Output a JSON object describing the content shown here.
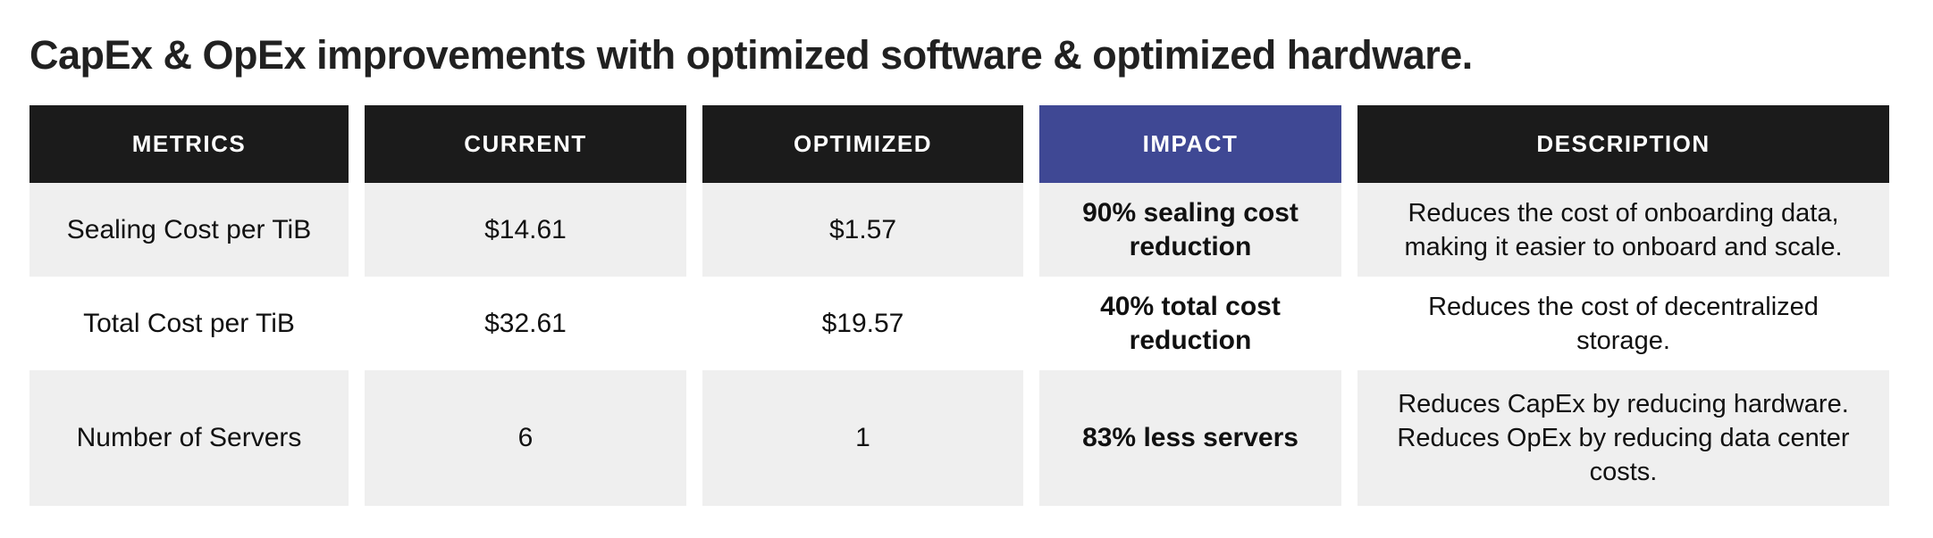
{
  "title": "CapEx & OpEx improvements with optimized software & optimized hardware.",
  "colors": {
    "page_background": "#ffffff",
    "title_text": "#212121",
    "header_background": "#1b1b1b",
    "header_text": "#ffffff",
    "impact_header_background": "#3f4894",
    "row_alt_background": "#efefef",
    "row_background": "#ffffff",
    "body_text": "#111111"
  },
  "table": {
    "columns": [
      "METRICS",
      "CURRENT",
      "OPTIMIZED",
      "IMPACT",
      "DESCRIPTION"
    ],
    "rows": [
      {
        "metric": "Sealing Cost per TiB",
        "current": "$14.61",
        "optimized": "$1.57",
        "impact": "90% sealing cost\nreduction",
        "description": "Reduces the cost of onboarding data,\nmaking it easier to onboard and scale."
      },
      {
        "metric": "Total Cost per TiB",
        "current": "$32.61",
        "optimized": "$19.57",
        "impact": "40% total cost\nreduction",
        "description": "Reduces the cost of decentralized\nstorage."
      },
      {
        "metric": "Number of Servers",
        "current": "6",
        "optimized": "1",
        "impact": "83% less servers",
        "description": "Reduces CapEx by reducing hardware.\nReduces OpEx by reducing data center\ncosts."
      }
    ]
  },
  "chart_data": {
    "type": "table",
    "title": "CapEx & OpEx improvements with optimized software & optimized hardware.",
    "columns": [
      "METRICS",
      "CURRENT",
      "OPTIMIZED",
      "IMPACT",
      "DESCRIPTION"
    ],
    "rows": [
      [
        "Sealing Cost per TiB",
        "$14.61",
        "$1.57",
        "90% sealing cost reduction",
        "Reduces the cost of onboarding data, making it easier to onboard and scale."
      ],
      [
        "Total Cost per TiB",
        "$32.61",
        "$19.57",
        "40% total cost reduction",
        "Reduces the cost of decentralized storage."
      ],
      [
        "Number of Servers",
        "6",
        "1",
        "83% less servers",
        "Reduces CapEx by reducing hardware. Reduces OpEx by reducing data center costs."
      ]
    ],
    "numeric_values": {
      "sealing_cost_per_tib": {
        "current": 14.61,
        "optimized": 1.57,
        "reduction_pct": 90
      },
      "total_cost_per_tib": {
        "current": 32.61,
        "optimized": 19.57,
        "reduction_pct": 40
      },
      "number_of_servers": {
        "current": 6,
        "optimized": 1,
        "reduction_pct": 83
      }
    },
    "layout_hints": {
      "highlighted_column": "IMPACT",
      "highlight_color": "#3f4894",
      "alternating_row_colors": [
        "#efefef",
        "#ffffff"
      ]
    }
  }
}
